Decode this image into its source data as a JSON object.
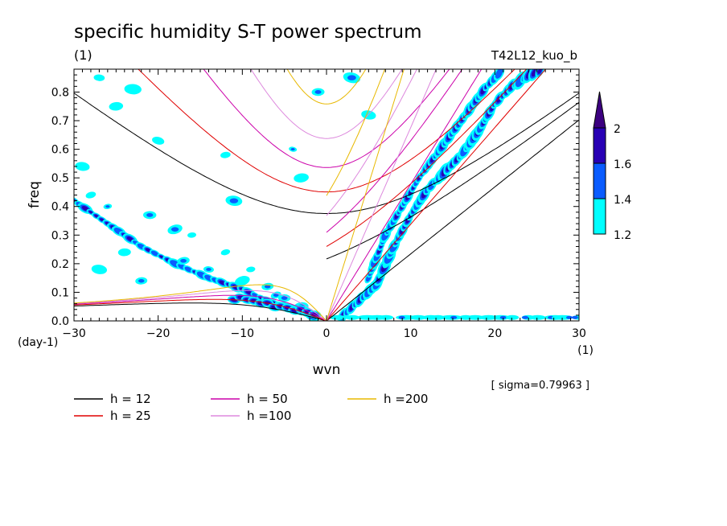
{
  "chart_data": {
    "type": "heatmap",
    "title": "specific humidity S-T power spectrum",
    "units_left": "(1)",
    "run_label": "T42L12_kuo_b",
    "xlabel": "wvn",
    "ylabel": "freq",
    "x_unit": "(1)",
    "y_unit": "(day-1)",
    "annotation": "[ sigma=0.79963 ]",
    "xlim": [
      -30,
      30
    ],
    "ylim": [
      0,
      0.88
    ],
    "x_ticks": [
      -30,
      -20,
      -10,
      0,
      10,
      20,
      30
    ],
    "y_ticks": [
      0.0,
      0.1,
      0.2,
      0.3,
      0.4,
      0.5,
      0.6,
      0.7,
      0.8
    ],
    "colorbar": {
      "levels": [
        1.2,
        1.4,
        1.6,
        2
      ],
      "colors": [
        "#00ffff",
        "#0a5cff",
        "#2800b4",
        "#3c0080"
      ]
    },
    "dispersion_curves": [
      {
        "label": "h = 12",
        "equivalent_depth": 12,
        "color": "#000000"
      },
      {
        "label": "h = 25",
        "equivalent_depth": 25,
        "color": "#e00000"
      },
      {
        "label": "h = 50",
        "equivalent_depth": 50,
        "color": "#cc00aa"
      },
      {
        "label": "h =100",
        "equivalent_depth": 100,
        "color": "#dd88dd"
      },
      {
        "label": "h =200",
        "equivalent_depth": 200,
        "color": "#e8b800"
      }
    ],
    "spectral_ridges": [
      {
        "name": "kelvin-ridge",
        "points": [
          [
            2,
            0.02
          ],
          [
            6,
            0.13
          ],
          [
            8,
            0.26
          ],
          [
            10,
            0.37
          ],
          [
            12,
            0.46
          ],
          [
            14,
            0.52
          ],
          [
            16,
            0.58
          ],
          [
            18,
            0.66
          ],
          [
            20,
            0.76
          ],
          [
            22,
            0.82
          ],
          [
            24,
            0.86
          ],
          [
            26,
            0.88
          ]
        ]
      },
      {
        "name": "gravity-ridge",
        "points": [
          [
            5,
            0.15
          ],
          [
            7,
            0.3
          ],
          [
            9,
            0.4
          ],
          [
            11,
            0.5
          ],
          [
            13,
            0.58
          ],
          [
            15,
            0.66
          ],
          [
            17,
            0.74
          ],
          [
            19,
            0.82
          ],
          [
            21,
            0.88
          ]
        ]
      },
      {
        "name": "rossby-ridge",
        "points": [
          [
            -30,
            0.42
          ],
          [
            -26,
            0.34
          ],
          [
            -22,
            0.26
          ],
          [
            -18,
            0.2
          ],
          [
            -14,
            0.15
          ],
          [
            -10,
            0.11
          ],
          [
            -7,
            0.07
          ],
          [
            -4,
            0.04
          ],
          [
            -1,
            0.01
          ]
        ]
      },
      {
        "name": "low-frequency-band",
        "points": [
          [
            2,
            0.01
          ],
          [
            10,
            0.01
          ],
          [
            18,
            0.015
          ],
          [
            26,
            0.015
          ],
          [
            30,
            0.015
          ]
        ]
      }
    ]
  }
}
